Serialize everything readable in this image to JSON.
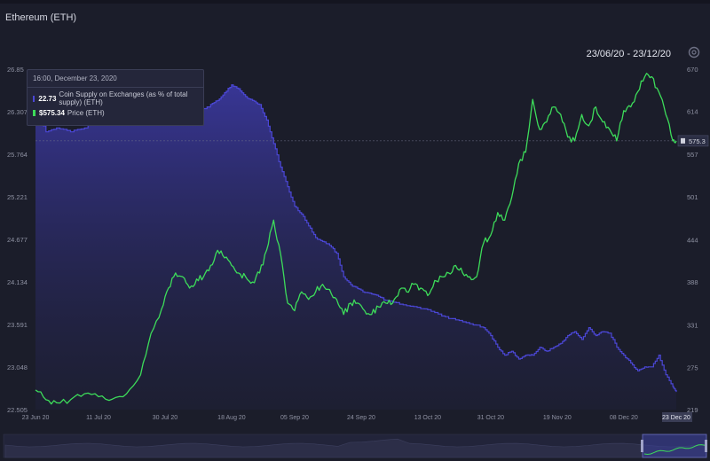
{
  "header": {
    "title": "Ethereum (ETH)",
    "date_range": "23/06/20 - 23/12/20",
    "settings_icon": "gear-icon"
  },
  "tooltip": {
    "timestamp": "16:00, December 23, 2020",
    "supply_value": "22.73",
    "supply_label": "Coin Supply on Exchanges (as % of total supply) (ETH)",
    "price_value": "$575.34",
    "price_label": "Price (ETH)"
  },
  "crosshair_label": "575.3",
  "colors": {
    "background": "#1b1d2a",
    "supply": "#4b47d6",
    "price": "#3ddc5a",
    "axis_text": "#8f92a3"
  },
  "chart_data": {
    "type": "line",
    "title": "Ethereum (ETH)",
    "x_tick_labels": [
      "23 Jun 20",
      "11 Jul 20",
      "30 Jul 20",
      "18 Aug 20",
      "05 Sep 20",
      "24 Sep 20",
      "13 Oct 20",
      "31 Oct 20",
      "19 Nov 20",
      "08 Dec 20",
      "23 Dec 20"
    ],
    "x_ticks": [
      0,
      18,
      37,
      56,
      74,
      93,
      112,
      130,
      149,
      168,
      183
    ],
    "xlim": [
      0,
      183
    ],
    "y_left_ticks": [
      "22.505",
      "23.048",
      "23.591",
      "24.134",
      "24.677",
      "25.221",
      "25.764",
      "26.307",
      "26.85"
    ],
    "y_left_range": [
      22.505,
      26.85
    ],
    "y_right_ticks": [
      "219",
      "275",
      "331",
      "388",
      "444",
      "501",
      "557",
      "614",
      "670"
    ],
    "y_right_range": [
      219,
      670
    ],
    "series": [
      {
        "name": "Coin Supply on Exchanges (as % of total supply) (ETH)",
        "axis": "left",
        "style": "area",
        "x": [
          0,
          3,
          6,
          10,
          14,
          18,
          22,
          26,
          30,
          34,
          38,
          42,
          46,
          50,
          52,
          54,
          56,
          58,
          60,
          62,
          64,
          66,
          68,
          70,
          72,
          74,
          76,
          78,
          80,
          82,
          84,
          86,
          88,
          90,
          92,
          94,
          96,
          98,
          100,
          104,
          108,
          112,
          116,
          120,
          124,
          128,
          130,
          132,
          134,
          136,
          138,
          140,
          142,
          144,
          146,
          148,
          150,
          152,
          154,
          156,
          158,
          160,
          162,
          164,
          166,
          168,
          170,
          172,
          174,
          176,
          178,
          180,
          182,
          183
        ],
        "y": [
          26.35,
          26.05,
          26.1,
          26.05,
          26.1,
          26.25,
          26.3,
          26.3,
          26.35,
          26.4,
          26.38,
          26.35,
          26.3,
          26.4,
          26.45,
          26.55,
          26.65,
          26.6,
          26.5,
          26.45,
          26.4,
          26.2,
          25.9,
          25.6,
          25.35,
          25.1,
          25.0,
          24.85,
          24.7,
          24.65,
          24.6,
          24.5,
          24.2,
          24.1,
          24.05,
          24.0,
          23.98,
          23.95,
          23.9,
          23.85,
          23.82,
          23.78,
          23.7,
          23.65,
          23.6,
          23.55,
          23.45,
          23.3,
          23.2,
          23.25,
          23.15,
          23.2,
          23.2,
          23.3,
          23.25,
          23.3,
          23.35,
          23.45,
          23.5,
          23.4,
          23.55,
          23.45,
          23.5,
          23.48,
          23.3,
          23.2,
          23.1,
          23.0,
          23.05,
          23.05,
          23.2,
          22.95,
          22.8,
          22.73
        ]
      },
      {
        "name": "Price (ETH)",
        "axis": "right",
        "style": "line",
        "x": [
          0,
          3,
          6,
          10,
          14,
          18,
          22,
          26,
          30,
          33,
          36,
          38,
          40,
          42,
          44,
          46,
          48,
          50,
          52,
          54,
          56,
          58,
          60,
          62,
          64,
          66,
          68,
          70,
          72,
          74,
          76,
          78,
          80,
          82,
          84,
          86,
          88,
          90,
          92,
          94,
          96,
          98,
          100,
          102,
          104,
          106,
          108,
          110,
          112,
          114,
          116,
          118,
          120,
          122,
          124,
          126,
          128,
          130,
          132,
          134,
          136,
          138,
          140,
          142,
          144,
          146,
          148,
          150,
          152,
          154,
          156,
          158,
          160,
          162,
          164,
          166,
          168,
          170,
          172,
          174,
          176,
          178,
          180,
          182,
          183
        ],
        "y": [
          245,
          232,
          228,
          232,
          240,
          236,
          233,
          240,
          265,
          320,
          352,
          380,
          400,
          395,
          380,
          392,
          395,
          410,
          430,
          420,
          410,
          400,
          395,
          388,
          400,
          430,
          470,
          425,
          360,
          350,
          375,
          365,
          375,
          385,
          378,
          365,
          345,
          360,
          360,
          350,
          345,
          355,
          360,
          360,
          378,
          375,
          385,
          380,
          370,
          390,
          395,
          400,
          410,
          400,
          395,
          395,
          440,
          450,
          480,
          470,
          500,
          545,
          560,
          630,
          590,
          600,
          620,
          610,
          580,
          575,
          610,
          595,
          620,
          600,
          590,
          575,
          615,
          620,
          640,
          660,
          660,
          640,
          610,
          575,
          575
        ]
      }
    ],
    "legend": "tooltip-top-left",
    "grid": false
  }
}
